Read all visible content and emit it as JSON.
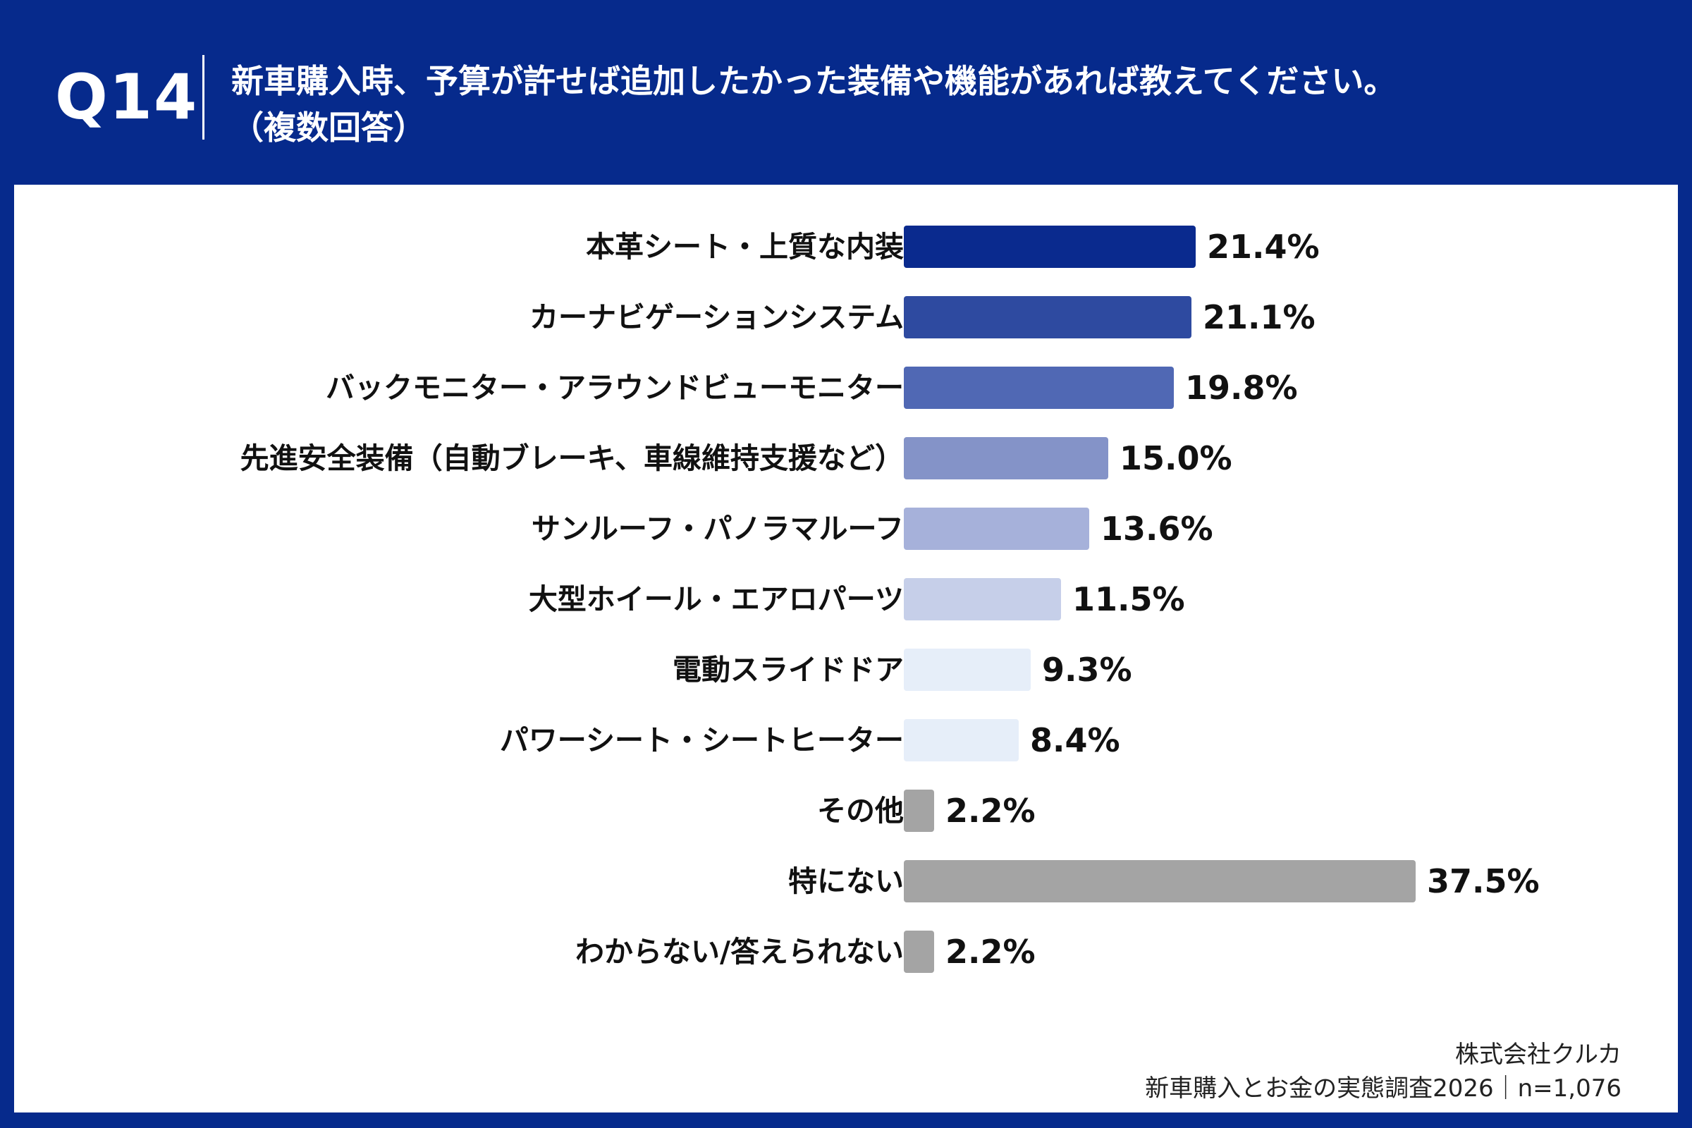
{
  "header": {
    "question_number": "Q14",
    "question_line1": "新車購入時、予算が許せば追加したかった装備や機能があれば教えてください。",
    "question_line2": "（複数回答）"
  },
  "footer": {
    "company": "株式会社クルカ",
    "survey": "新車購入とお金の実態調査2026｜n=1,076"
  },
  "chart_data": {
    "type": "bar",
    "orientation": "horizontal",
    "categories": [
      "本革シート・上質な内装",
      "カーナビゲーションシステム",
      "バックモニター・アラウンドビューモニター",
      "先進安全装備（自動ブレーキ、車線維持支援など）",
      "サンルーフ・パノラマルーフ",
      "大型ホイール・エアロパーツ",
      "電動スライドドア",
      "パワーシート・シートヒーター",
      "その他",
      "特にない",
      "わからない/答えられない"
    ],
    "values": [
      21.4,
      21.1,
      19.8,
      15.0,
      13.6,
      11.5,
      9.3,
      8.4,
      2.2,
      37.5,
      2.2
    ],
    "value_labels": [
      "21.4%",
      "21.1%",
      "19.8%",
      "15.0%",
      "13.6%",
      "11.5%",
      "9.3%",
      "8.4%",
      "2.2%",
      "37.5%",
      "2.2%"
    ],
    "colors": [
      "#0a2a8e",
      "#2e4aa0",
      "#5068b4",
      "#8493c8",
      "#a6b1da",
      "#c6cfe9",
      "#e6eef9",
      "#e6eef9",
      "#a4a4a4",
      "#a4a4a4",
      "#a4a4a4"
    ],
    "xlim": [
      0,
      37.5
    ],
    "grid": false,
    "legend": "none"
  }
}
